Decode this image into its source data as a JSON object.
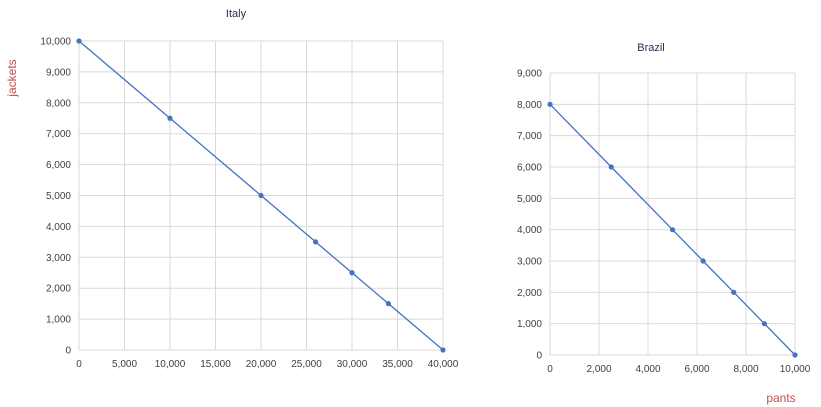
{
  "chart_data": [
    {
      "type": "line",
      "title": "Italy",
      "ylabel": "jackets",
      "xlabel": "",
      "xlim": [
        0,
        40000
      ],
      "ylim": [
        0,
        10000
      ],
      "x_ticks": [
        "0",
        "5,000",
        "10,000",
        "15,000",
        "20,000",
        "25,000",
        "30,000",
        "35,000",
        "40,000"
      ],
      "y_ticks": [
        "0",
        "1,000",
        "2,000",
        "3,000",
        "4,000",
        "5,000",
        "6,000",
        "7,000",
        "8,000",
        "9,000",
        "10,000"
      ],
      "grid": true,
      "series": [
        {
          "color": "#4472c4",
          "points": [
            {
              "x": 0,
              "y": 10000
            },
            {
              "x": 10000,
              "y": 7500
            },
            {
              "x": 20000,
              "y": 5000
            },
            {
              "x": 26000,
              "y": 3500
            },
            {
              "x": 30000,
              "y": 2500
            },
            {
              "x": 34000,
              "y": 1500
            },
            {
              "x": 40000,
              "y": 0
            }
          ]
        }
      ]
    },
    {
      "type": "line",
      "title": "Brazil",
      "ylabel": "",
      "xlabel": "pants",
      "xlim": [
        0,
        10000
      ],
      "ylim": [
        0,
        9000
      ],
      "x_ticks": [
        "0",
        "2,000",
        "4,000",
        "6,000",
        "8,000",
        "10,000"
      ],
      "y_ticks": [
        "0",
        "1,000",
        "2,000",
        "3,000",
        "4,000",
        "5,000",
        "6,000",
        "7,000",
        "8,000",
        "9,000"
      ],
      "grid": true,
      "series": [
        {
          "color": "#4472c4",
          "points": [
            {
              "x": 0,
              "y": 8000
            },
            {
              "x": 2500,
              "y": 6000
            },
            {
              "x": 5000,
              "y": 4000
            },
            {
              "x": 6250,
              "y": 3000
            },
            {
              "x": 7500,
              "y": 2000
            },
            {
              "x": 8750,
              "y": 1000
            },
            {
              "x": 10000,
              "y": 0
            }
          ]
        }
      ]
    }
  ],
  "colors": {
    "axis_label": "#c0504d",
    "title": "#1f2d4f",
    "grid": "#d9d9d9",
    "line": "#4472c4"
  }
}
